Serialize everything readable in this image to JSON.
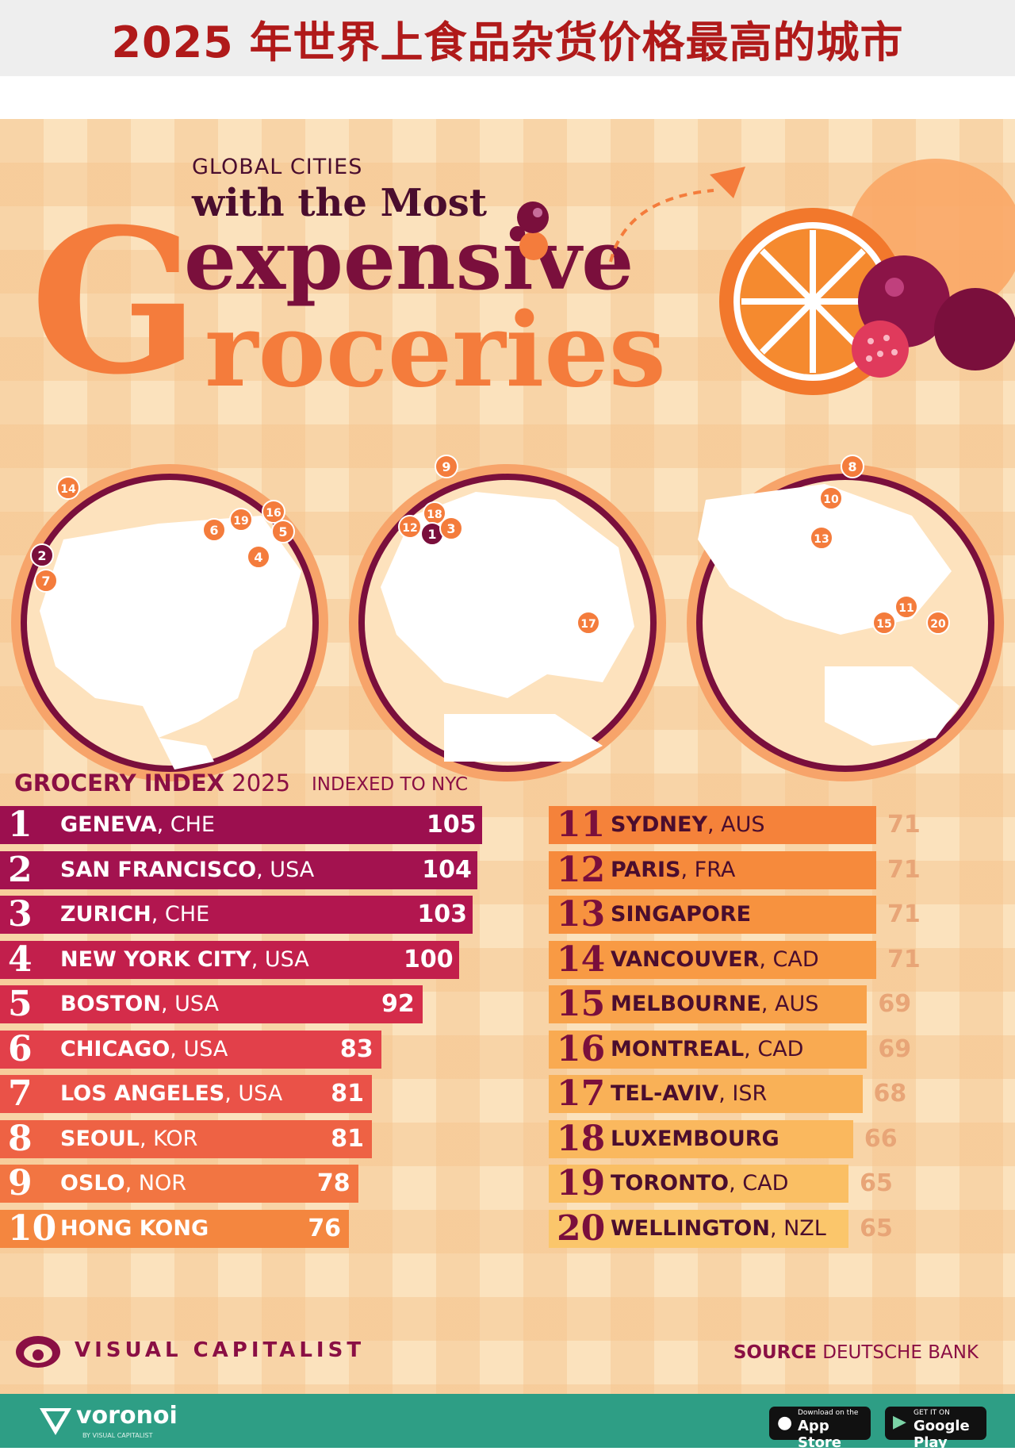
{
  "banner": {
    "title": "2025 年世界上食品杂货价格最高的城市"
  },
  "poster": {
    "kicker": "GLOBAL CITIES",
    "line1": "with the Most",
    "line2": "expensive",
    "big_g": "G",
    "line3": "roceries"
  },
  "maps": {
    "americas": [
      "14",
      "2",
      "7",
      "6",
      "19",
      "16",
      "5",
      "4"
    ],
    "europe": [
      "9",
      "18",
      "12",
      "1",
      "3",
      "17"
    ],
    "asia_pacific": [
      "8",
      "10",
      "13",
      "11",
      "15",
      "20"
    ]
  },
  "index": {
    "title_bold": "GROCERY INDEX",
    "title_year": "2025",
    "indexed_to": "INDEXED TO NYC"
  },
  "chart_data": {
    "type": "bar",
    "title": "GROCERY INDEX 2025",
    "ylabel": "INDEXED TO NYC",
    "series": [
      {
        "values": [
          105,
          104,
          103,
          100,
          92,
          83,
          81,
          81,
          78,
          76,
          71,
          71,
          71,
          71,
          69,
          69,
          68,
          66,
          65,
          65
        ]
      }
    ],
    "rows": [
      {
        "rank": "1",
        "city": "GENEVA",
        "country": ", CHE",
        "value": 105
      },
      {
        "rank": "2",
        "city": "SAN FRANCISCO",
        "country": ", USA",
        "value": 104
      },
      {
        "rank": "3",
        "city": "ZURICH",
        "country": ", CHE",
        "value": 103
      },
      {
        "rank": "4",
        "city": "NEW YORK CITY",
        "country": ", USA",
        "value": 100
      },
      {
        "rank": "5",
        "city": "BOSTON",
        "country": ", USA",
        "value": 92
      },
      {
        "rank": "6",
        "city": "CHICAGO",
        "country": ", USA",
        "value": 83
      },
      {
        "rank": "7",
        "city": "LOS ANGELES",
        "country": ", USA",
        "value": 81
      },
      {
        "rank": "8",
        "city": "SEOUL",
        "country": ", KOR",
        "value": 81
      },
      {
        "rank": "9",
        "city": "OSLO",
        "country": ", NOR",
        "value": 78
      },
      {
        "rank": "10",
        "city": "HONG KONG",
        "country": "",
        "value": 76
      },
      {
        "rank": "11",
        "city": "SYDNEY",
        "country": ", AUS",
        "value": 71
      },
      {
        "rank": "12",
        "city": "PARIS",
        "country": ", FRA",
        "value": 71
      },
      {
        "rank": "13",
        "city": "SINGAPORE",
        "country": "",
        "value": 71
      },
      {
        "rank": "14",
        "city": "VANCOUVER",
        "country": ", CAD",
        "value": 71
      },
      {
        "rank": "15",
        "city": "MELBOURNE",
        "country": ", AUS",
        "value": 69
      },
      {
        "rank": "16",
        "city": "MONTREAL",
        "country": ", CAD",
        "value": 69
      },
      {
        "rank": "17",
        "city": "TEL-AVIV",
        "country": ", ISR",
        "value": 68
      },
      {
        "rank": "18",
        "city": "LUXEMBOURG",
        "country": "",
        "value": 66
      },
      {
        "rank": "19",
        "city": "TORONTO",
        "country": ", CAD",
        "value": 65
      },
      {
        "rank": "20",
        "city": "WELLINGTON",
        "country": ", NZL",
        "value": 65
      }
    ],
    "bar_colors": [
      "#9c0f4f",
      "#a3124f",
      "#b2164f",
      "#c21f4c",
      "#d42c4a",
      "#e2404a",
      "#ea5248",
      "#ee6244",
      "#f27542",
      "#f4863f",
      "#f5823a",
      "#f68a3c",
      "#f7923f",
      "#f89a44",
      "#f8a24a",
      "#f9aa51",
      "#f9b157",
      "#fab85e",
      "#fabf64",
      "#fbc66b"
    ]
  },
  "footer": {
    "brand": "VISUAL CAPITALIST",
    "source_label": "SOURCE",
    "source_value": "DEUTSCHE BANK",
    "app_brand": "voronoi",
    "app_sub": "BY VISUAL CAPITALIST",
    "appstore_small": "Download on the",
    "appstore_big": "App Store",
    "play_small": "GET IT ON",
    "play_big": "Google Play"
  },
  "colors": {
    "maroon": "#7a0f3c",
    "orange": "#f47c3c",
    "banner_red": "#b01a1a",
    "teal": "#2e9e85"
  }
}
